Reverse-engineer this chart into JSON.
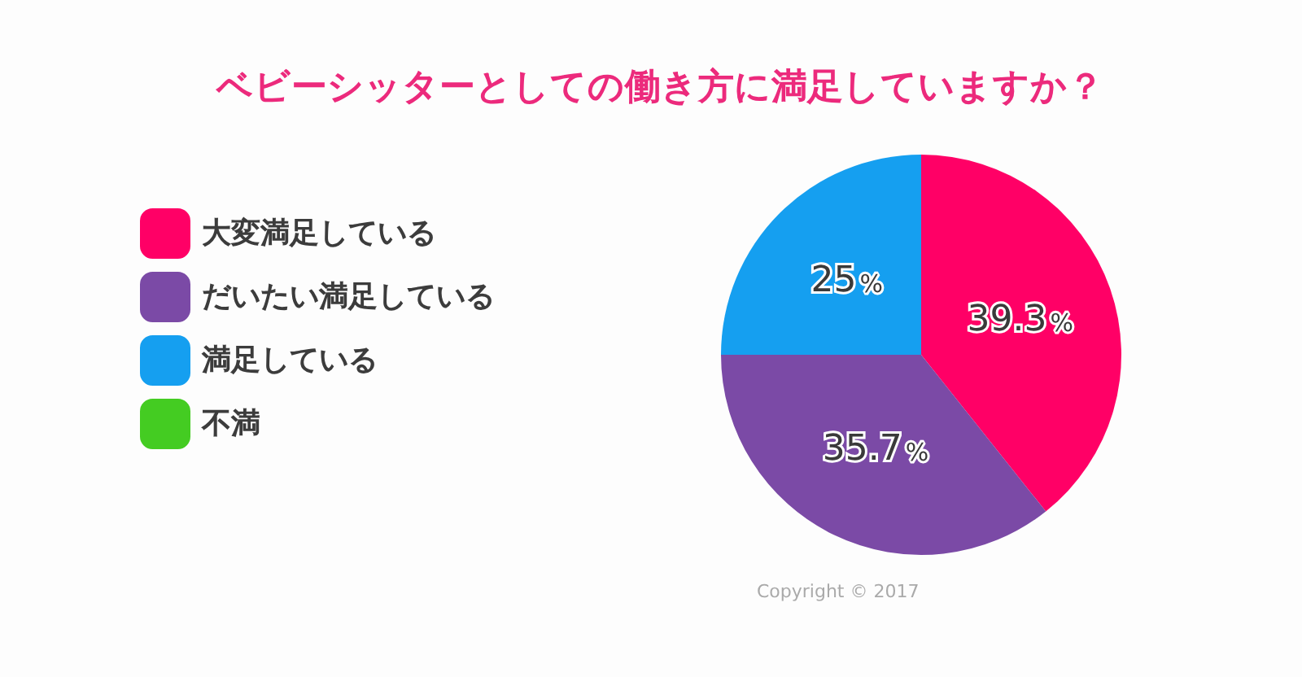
{
  "chart_data": {
    "type": "pie",
    "title": "ベビーシッターとしての働き方に満足していますか？",
    "categories": [
      "大変満足している",
      "だいたい満足している",
      "満足している",
      "不満"
    ],
    "values": [
      39.3,
      35.7,
      25,
      0
    ],
    "colors": [
      "#ff0066",
      "#7b4aa6",
      "#159ff0",
      "#44cc22"
    ],
    "value_labels": [
      "39.3%",
      "35.7%",
      "25%",
      null
    ],
    "legend": "left",
    "annotations": [
      "Copyright © 2017"
    ]
  }
}
